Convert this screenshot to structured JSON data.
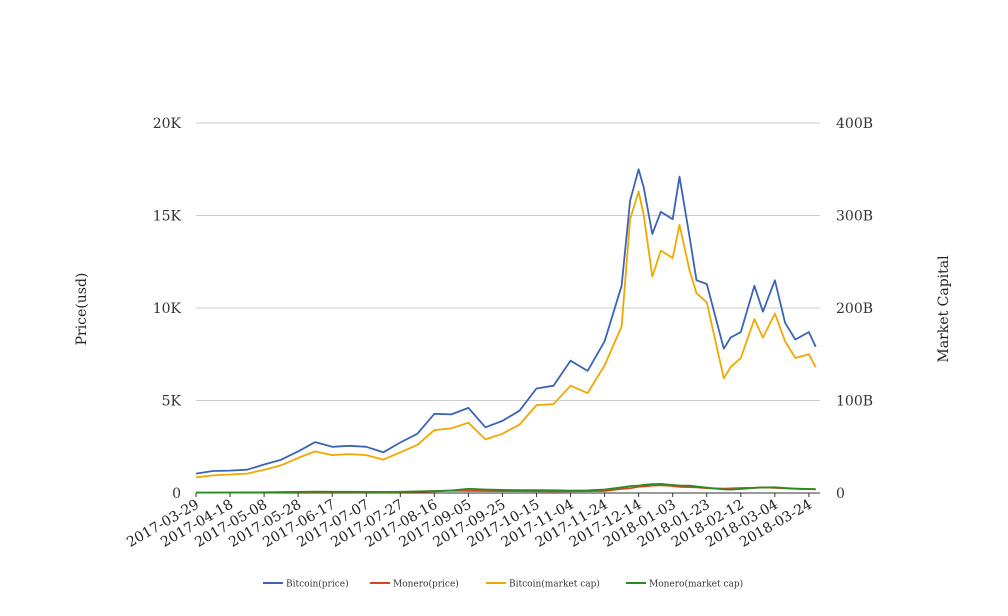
{
  "chart_data": {
    "type": "line",
    "title": "",
    "ylabel_left": "Price(usd)",
    "ylabel_right": "Market Capital",
    "ylim_left": [
      0,
      20000
    ],
    "ylim_right": [
      0,
      400000000000
    ],
    "left_ticks": [
      {
        "value": 0,
        "label": "0"
      },
      {
        "value": 5000,
        "label": "5K"
      },
      {
        "value": 10000,
        "label": "10K"
      },
      {
        "value": 15000,
        "label": "15K"
      },
      {
        "value": 20000,
        "label": "20K"
      }
    ],
    "right_ticks": [
      {
        "value": 0,
        "label": "0"
      },
      {
        "value": 100000000000,
        "label": "100B"
      },
      {
        "value": 200000000000,
        "label": "200B"
      },
      {
        "value": 300000000000,
        "label": "300B"
      },
      {
        "value": 400000000000,
        "label": "400B"
      }
    ],
    "x_tick_labels": [
      "2017-03-29",
      "2017-04-18",
      "2017-05-08",
      "2017-05-28",
      "2017-06-17",
      "2017-07-07",
      "2017-07-27",
      "2017-08-16",
      "2017-09-05",
      "2017-09-25",
      "2017-10-15",
      "2017-11-04",
      "2017-11-24",
      "2017-12-14",
      "2018-01-03",
      "2018-01-23",
      "2018-02-12",
      "2018-03-04",
      "2018-03-24"
    ],
    "x": [
      "2017-03-29",
      "2017-04-08",
      "2017-04-18",
      "2017-04-28",
      "2017-05-08",
      "2017-05-18",
      "2017-05-28",
      "2017-06-07",
      "2017-06-17",
      "2017-06-27",
      "2017-07-07",
      "2017-07-17",
      "2017-07-27",
      "2017-08-06",
      "2017-08-16",
      "2017-08-26",
      "2017-09-05",
      "2017-09-15",
      "2017-09-25",
      "2017-10-05",
      "2017-10-15",
      "2017-10-25",
      "2017-11-04",
      "2017-11-14",
      "2017-11-24",
      "2017-12-04",
      "2017-12-09",
      "2017-12-14",
      "2017-12-17",
      "2017-12-22",
      "2017-12-27",
      "2018-01-03",
      "2018-01-07",
      "2018-01-13",
      "2018-01-17",
      "2018-01-23",
      "2018-02-02",
      "2018-02-06",
      "2018-02-12",
      "2018-02-20",
      "2018-02-25",
      "2018-03-04",
      "2018-03-10",
      "2018-03-16",
      "2018-03-24",
      "2018-03-28"
    ],
    "legend_position": "bottom",
    "grid": true,
    "series": [
      {
        "name": "Bitcoin(price)",
        "color": "#3b64b8",
        "axis": "left",
        "values": [
          1050,
          1190,
          1210,
          1260,
          1540,
          1800,
          2250,
          2750,
          2500,
          2550,
          2500,
          2200,
          2730,
          3200,
          4280,
          4250,
          4600,
          3550,
          3900,
          4450,
          5650,
          5800,
          7150,
          6600,
          8200,
          11200,
          15800,
          17500,
          16500,
          14000,
          15200,
          14800,
          17100,
          13800,
          11500,
          11300,
          7800,
          8400,
          8700,
          11200,
          9800,
          11500,
          9200,
          8300,
          8700,
          7900
        ]
      },
      {
        "name": "Monero(price)",
        "color": "#d4471e",
        "axis": "left",
        "values": [
          20,
          20,
          25,
          30,
          40,
          50,
          55,
          50,
          50,
          45,
          45,
          45,
          50,
          70,
          90,
          130,
          120,
          110,
          105,
          100,
          95,
          90,
          95,
          100,
          110,
          220,
          260,
          340,
          350,
          400,
          420,
          380,
          330,
          320,
          300,
          260,
          240,
          250,
          270,
          280,
          300,
          280,
          250,
          230,
          210,
          200
        ]
      },
      {
        "name": "Bitcoin(market cap)",
        "color": "#f0a800",
        "axis": "right",
        "values": [
          17000000000,
          19000000000,
          20000000000,
          21000000000,
          25000000000,
          30000000000,
          38000000000,
          45000000000,
          41000000000,
          42000000000,
          41000000000,
          36000000000,
          44000000000,
          52000000000,
          68000000000,
          70000000000,
          76000000000,
          58000000000,
          64000000000,
          74000000000,
          95000000000,
          96000000000,
          116000000000,
          108000000000,
          138000000000,
          180000000000,
          296000000000,
          326000000000,
          300000000000,
          234000000000,
          262000000000,
          254000000000,
          290000000000,
          240000000000,
          216000000000,
          206000000000,
          124000000000,
          136000000000,
          146000000000,
          188000000000,
          168000000000,
          194000000000,
          164000000000,
          146000000000,
          150000000000,
          136000000000
        ]
      },
      {
        "name": "Monero(market cap)",
        "color": "#2a8a22",
        "axis": "right",
        "values": [
          400000000,
          450000000,
          500000000,
          600000000,
          700000000,
          800000000,
          1200000000,
          1500000000,
          1300000000,
          1300000000,
          1200000000,
          1100000000,
          1300000000,
          1700000000,
          2200000000,
          2700000000,
          4500000000,
          3800000000,
          3300000000,
          3000000000,
          3000000000,
          2900000000,
          2500000000,
          2800000000,
          3800000000,
          6000000000,
          7500000000,
          8000000000,
          8800000000,
          9500000000,
          9800000000,
          8600000000,
          8100000000,
          8000000000,
          7000000000,
          5700000000,
          3900000000,
          3700000000,
          4300000000,
          5500000000,
          5900000000,
          6200000000,
          5400000000,
          4700000000,
          4300000000,
          4100000000
        ]
      }
    ]
  }
}
